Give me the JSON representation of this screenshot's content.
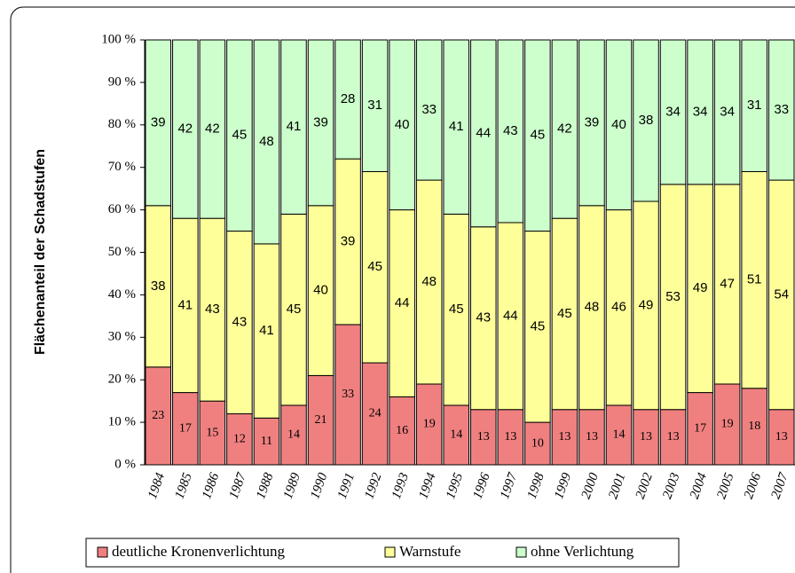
{
  "chart_data": {
    "type": "stacked_bar_100",
    "y_label": "Flächenanteil der Schadstufen",
    "categories": [
      "1984",
      "1985",
      "1986",
      "1987",
      "1988",
      "1989",
      "1990",
      "1991",
      "1992",
      "1993",
      "1994",
      "1995",
      "1996",
      "1997",
      "1998",
      "1999",
      "2000",
      "2001",
      "2002",
      "2003",
      "2004",
      "2005",
      "2006",
      "2007"
    ],
    "series": [
      {
        "name": "deutliche Kronenverlichtung",
        "color": "#f08080",
        "values": [
          23,
          17,
          15,
          12,
          11,
          14,
          21,
          33,
          24,
          16,
          19,
          14,
          13,
          13,
          10,
          13,
          13,
          14,
          13,
          13,
          17,
          19,
          18,
          13
        ]
      },
      {
        "name": "Warnstufe",
        "color": "#ffff99",
        "values": [
          38,
          41,
          43,
          43,
          41,
          45,
          40,
          39,
          45,
          44,
          48,
          45,
          43,
          44,
          45,
          45,
          48,
          46,
          49,
          53,
          49,
          47,
          51,
          54
        ]
      },
      {
        "name": "ohne Verlichtung",
        "color": "#ccffcc",
        "values": [
          39,
          42,
          42,
          45,
          48,
          41,
          39,
          28,
          31,
          40,
          33,
          41,
          44,
          43,
          45,
          42,
          39,
          40,
          38,
          34,
          34,
          34,
          31,
          33
        ]
      }
    ],
    "ylim": [
      0,
      100
    ],
    "yticks": [
      {
        "value": 0,
        "label": "0 %"
      },
      {
        "value": 10,
        "label": "10 %"
      },
      {
        "value": 20,
        "label": "20 %"
      },
      {
        "value": 30,
        "label": "30 %"
      },
      {
        "value": 40,
        "label": "40 %"
      },
      {
        "value": 50,
        "label": "50 %"
      },
      {
        "value": 60,
        "label": "60 %"
      },
      {
        "value": 70,
        "label": "70 %"
      },
      {
        "value": 80,
        "label": "80 %"
      },
      {
        "value": 90,
        "label": "90 %"
      },
      {
        "value": 100,
        "label": "100 %"
      }
    ],
    "legend": "bottom"
  }
}
